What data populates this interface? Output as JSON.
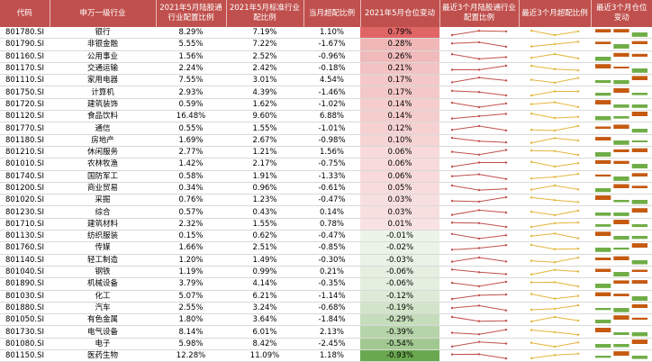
{
  "chart_data": {
    "type": "table",
    "columns": [
      "代码",
      "申万一级行业",
      "2021年5月陆股通行业配置比例",
      "2021年5月标准行业配比例",
      "当月超配比例",
      "2021年5月仓位变动",
      "最近3个月陆股通行业配置比例",
      "最近3个月超配比例",
      "最近3个月仓位变动"
    ],
    "rows": [
      {
        "code": "801780.SI",
        "name": "银行",
        "lugu": "8.29%",
        "std": "7.19%",
        "over": "1.10%",
        "chg": "0.79%",
        "chg_v": 0.79
      },
      {
        "code": "801790.SI",
        "name": "非银金融",
        "lugu": "5.55%",
        "std": "7.22%",
        "over": "-1.67%",
        "chg": "0.28%",
        "chg_v": 0.28
      },
      {
        "code": "801160.SI",
        "name": "公用事业",
        "lugu": "1.56%",
        "std": "2.52%",
        "over": "-0.96%",
        "chg": "0.26%",
        "chg_v": 0.26
      },
      {
        "code": "801170.SI",
        "name": "交通运输",
        "lugu": "2.24%",
        "std": "2.42%",
        "over": "-0.18%",
        "chg": "0.21%",
        "chg_v": 0.21
      },
      {
        "code": "801110.SI",
        "name": "家用电器",
        "lugu": "7.55%",
        "std": "3.01%",
        "over": "4.54%",
        "chg": "0.17%",
        "chg_v": 0.17
      },
      {
        "code": "801750.SI",
        "name": "计算机",
        "lugu": "2.93%",
        "std": "4.39%",
        "over": "-1.46%",
        "chg": "0.17%",
        "chg_v": 0.17
      },
      {
        "code": "801720.SI",
        "name": "建筑装饰",
        "lugu": "0.59%",
        "std": "1.62%",
        "over": "-1.02%",
        "chg": "0.14%",
        "chg_v": 0.14
      },
      {
        "code": "801120.SI",
        "name": "食品饮料",
        "lugu": "16.48%",
        "std": "9.60%",
        "over": "6.88%",
        "chg": "0.14%",
        "chg_v": 0.14
      },
      {
        "code": "801770.SI",
        "name": "通信",
        "lugu": "0.55%",
        "std": "1.55%",
        "over": "-1.01%",
        "chg": "0.12%",
        "chg_v": 0.12
      },
      {
        "code": "801180.SI",
        "name": "房地产",
        "lugu": "1.69%",
        "std": "2.67%",
        "over": "-0.98%",
        "chg": "0.10%",
        "chg_v": 0.1
      },
      {
        "code": "801210.SI",
        "name": "休闲服务",
        "lugu": "2.77%",
        "std": "1.21%",
        "over": "1.56%",
        "chg": "0.06%",
        "chg_v": 0.06
      },
      {
        "code": "801010.SI",
        "name": "农林牧渔",
        "lugu": "1.42%",
        "std": "2.17%",
        "over": "-0.75%",
        "chg": "0.06%",
        "chg_v": 0.06
      },
      {
        "code": "801740.SI",
        "name": "国防军工",
        "lugu": "0.58%",
        "std": "1.91%",
        "over": "-1.33%",
        "chg": "0.06%",
        "chg_v": 0.06
      },
      {
        "code": "801200.SI",
        "name": "商业贸易",
        "lugu": "0.34%",
        "std": "0.96%",
        "over": "-0.61%",
        "chg": "0.05%",
        "chg_v": 0.05
      },
      {
        "code": "801020.SI",
        "name": "采掘",
        "lugu": "0.76%",
        "std": "1.23%",
        "over": "-0.47%",
        "chg": "0.03%",
        "chg_v": 0.03
      },
      {
        "code": "801230.SI",
        "name": "综合",
        "lugu": "0.57%",
        "std": "0.43%",
        "over": "0.14%",
        "chg": "0.03%",
        "chg_v": 0.03
      },
      {
        "code": "801710.SI",
        "name": "建筑材料",
        "lugu": "2.32%",
        "std": "1.55%",
        "over": "0.78%",
        "chg": "0.01%",
        "chg_v": 0.01
      },
      {
        "code": "801130.SI",
        "name": "纺织服装",
        "lugu": "0.15%",
        "std": "0.62%",
        "over": "-0.47%",
        "chg": "-0.01%",
        "chg_v": -0.01
      },
      {
        "code": "801760.SI",
        "name": "传媒",
        "lugu": "1.66%",
        "std": "2.51%",
        "over": "-0.85%",
        "chg": "-0.02%",
        "chg_v": -0.02
      },
      {
        "code": "801140.SI",
        "name": "轻工制造",
        "lugu": "1.20%",
        "std": "1.49%",
        "over": "-0.30%",
        "chg": "-0.03%",
        "chg_v": -0.03
      },
      {
        "code": "801040.SI",
        "name": "钢铁",
        "lugu": "1.19%",
        "std": "0.99%",
        "over": "0.21%",
        "chg": "-0.06%",
        "chg_v": -0.06
      },
      {
        "code": "801890.SI",
        "name": "机械设备",
        "lugu": "3.79%",
        "std": "4.14%",
        "over": "-0.35%",
        "chg": "-0.06%",
        "chg_v": -0.06
      },
      {
        "code": "801030.SI",
        "name": "化工",
        "lugu": "5.07%",
        "std": "6.21%",
        "over": "-1.14%",
        "chg": "-0.12%",
        "chg_v": -0.12
      },
      {
        "code": "801880.SI",
        "name": "汽车",
        "lugu": "2.55%",
        "std": "3.24%",
        "over": "-0.68%",
        "chg": "-0.19%",
        "chg_v": -0.19
      },
      {
        "code": "801050.SI",
        "name": "有色金属",
        "lugu": "1.80%",
        "std": "3.64%",
        "over": "-1.84%",
        "chg": "-0.29%",
        "chg_v": -0.29
      },
      {
        "code": "801730.SI",
        "name": "电气设备",
        "lugu": "8.14%",
        "std": "6.01%",
        "over": "2.13%",
        "chg": "-0.39%",
        "chg_v": -0.39
      },
      {
        "code": "801080.SI",
        "name": "电子",
        "lugu": "5.98%",
        "std": "8.42%",
        "over": "-2.45%",
        "chg": "-0.54%",
        "chg_v": -0.54
      },
      {
        "code": "801150.SI",
        "name": "医药生物",
        "lugu": "12.28%",
        "std": "11.09%",
        "over": "1.18%",
        "chg": "-0.93%",
        "chg_v": -0.93
      }
    ],
    "colors": {
      "header": "#c0504d",
      "spark_lugu": "#c0504d",
      "spark_over": "#e3b53c",
      "bar_pos": "#c55a11",
      "bar_neg": "#70ad47",
      "heat_pos": "#e06666",
      "heat_neg": "#6aa84f"
    }
  }
}
